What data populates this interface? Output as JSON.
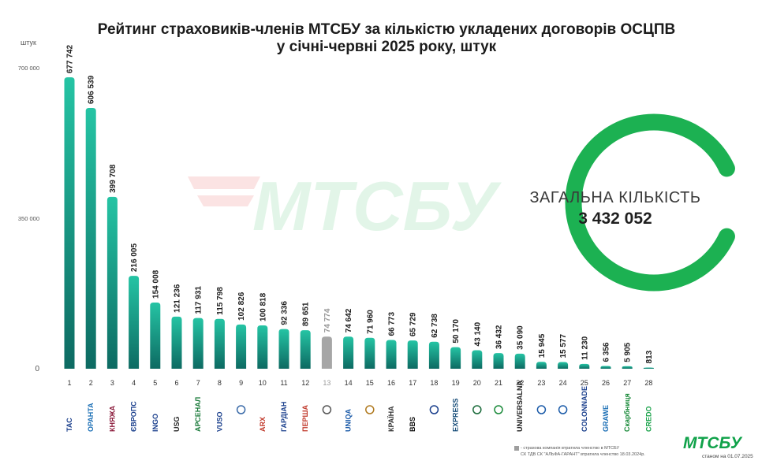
{
  "chart_data": {
    "type": "bar",
    "title": "Рейтинг страховиків-членів МТСБУ за кількістю укладених договорів ОСЦПВ",
    "subtitle": "у січні-червні 2025 року, штук",
    "ylabel": "штук",
    "ylim": [
      0,
      700000
    ],
    "y_ticks": [
      "700 000",
      "350 000",
      "0"
    ],
    "y_tick_values": [
      700000,
      350000,
      0
    ],
    "categories": [
      "1",
      "2",
      "3",
      "4",
      "5",
      "6",
      "7",
      "8",
      "9",
      "10",
      "11",
      "12",
      "13",
      "14",
      "15",
      "16",
      "17",
      "18",
      "19",
      "20",
      "21",
      "22",
      "23",
      "24",
      "25",
      "26",
      "27",
      "28"
    ],
    "values": [
      677742,
      606539,
      399708,
      216005,
      154008,
      121236,
      117931,
      115798,
      102826,
      100818,
      92336,
      89651,
      74774,
      74642,
      71960,
      66773,
      65729,
      62738,
      50170,
      43140,
      36432,
      35090,
      15945,
      15577,
      11230,
      6356,
      5905,
      813
    ],
    "value_labels": [
      "677 742",
      "606 539",
      "399 708",
      "216 005",
      "154 008",
      "121 236",
      "117 931",
      "115 798",
      "102 826",
      "100 818",
      "92 336",
      "89 651",
      "74 774",
      "74 642",
      "71 960",
      "66 773",
      "65 729",
      "62 738",
      "50 170",
      "43 140",
      "36 432",
      "35 090",
      "15 945",
      "15 577",
      "11 230",
      "6 356",
      "5 905",
      "813"
    ],
    "highlighted_index": 12,
    "logos": [
      "ТАС",
      "ОРАНТА",
      "КНЯЖА",
      "ЄВРОПС",
      "INGO",
      "USG",
      "АРСЕНАЛ",
      "VUSO",
      "",
      "ARX",
      "ГАРДІАН",
      "ПЕРША",
      "",
      "UNIQA",
      "",
      "КРАЇНА",
      "BBS",
      "",
      "EXPRESS",
      "",
      "",
      "UNIVERSALNA",
      "",
      "",
      "COLONNADE",
      "GRAWE",
      "Скарбниця",
      "CREDO"
    ],
    "legend": "none",
    "grid": false
  },
  "total": {
    "label": "ЗАГАЛЬНА КІЛЬКІСТЬ",
    "value": "3 432 052"
  },
  "watermark": "МТСБУ",
  "footnote": {
    "line1": "- страхова компанія втратила членство в МТСБУ",
    "line2": "СК ТДВ СК \"АЛЬФА-ГАРАНТ\" втратила членство 18.03.2024р."
  },
  "brand": "МТСБУ",
  "as_of": "станом на 01.07.2025",
  "colors": {
    "teal_top": "#25c4a4",
    "teal_bottom": "#0d6a62",
    "highlight": "#a6a6a6",
    "ring": "#1cb152",
    "watermark_green": "#e2f5e8",
    "watermark_red": "#fbe3e3"
  }
}
